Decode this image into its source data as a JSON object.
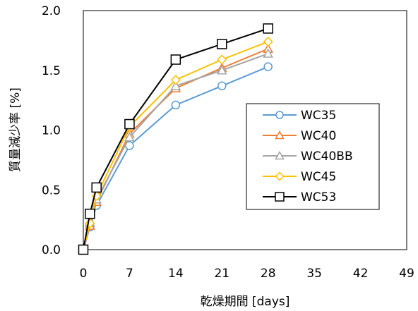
{
  "chart_data": {
    "type": "line",
    "xlabel": "乾燥期間 [days]",
    "ylabel": "質量減少率 [%]",
    "xlim": [
      0,
      49
    ],
    "ylim": [
      0,
      2.0
    ],
    "xticks": [
      "0",
      "7",
      "14",
      "21",
      "28",
      "35",
      "42",
      "49"
    ],
    "yticks": [
      "0.0",
      "0.5",
      "1.0",
      "1.5",
      "2.0"
    ],
    "grid": false,
    "legend": "center-right",
    "x": [
      0,
      1,
      2,
      7,
      14,
      21,
      28
    ],
    "series": [
      {
        "name": "WC35",
        "color": "#5b9bd5",
        "marker": "circle",
        "values": [
          0,
          0.19,
          0.37,
          0.87,
          1.21,
          1.37,
          1.53
        ]
      },
      {
        "name": "WC40",
        "color": "#ed7d31",
        "marker": "triangle",
        "values": [
          0,
          0.2,
          0.4,
          0.97,
          1.35,
          1.52,
          1.68
        ]
      },
      {
        "name": "WC40BB",
        "color": "#a5a5a5",
        "marker": "triangle",
        "values": [
          0,
          0.23,
          0.42,
          0.94,
          1.37,
          1.5,
          1.64
        ]
      },
      {
        "name": "WC45",
        "color": "#ffc000",
        "marker": "diamond",
        "values": [
          0,
          0.22,
          0.45,
          1.03,
          1.42,
          1.59,
          1.74
        ]
      },
      {
        "name": "WC53",
        "color": "#000000",
        "marker": "square",
        "values": [
          0,
          0.3,
          0.52,
          1.05,
          1.59,
          1.72,
          1.85
        ]
      }
    ]
  }
}
